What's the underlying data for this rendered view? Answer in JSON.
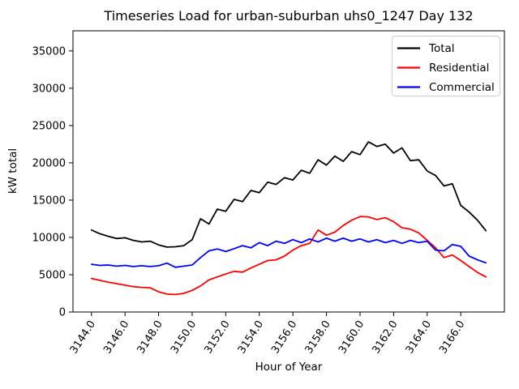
{
  "window": {
    "background": "#ffffff"
  },
  "chart_data": {
    "type": "line",
    "title": "Timeseries Load for urban-suburban uhs0_1247  Day 132",
    "xlabel": "Hour of Year",
    "ylabel": "kW total",
    "grid": false,
    "legend_position": "upper right",
    "xlim": [
      3142.9,
      3168.6
    ],
    "ylim": [
      0,
      37700
    ],
    "x_start": 3144.0,
    "x_step": 0.5,
    "xticks": {
      "values": [
        3144,
        3146,
        3148,
        3150,
        3152,
        3154,
        3156,
        3158,
        3160,
        3162,
        3164,
        3166
      ],
      "labels": [
        "3144.0",
        "3146.0",
        "3148.0",
        "3150.0",
        "3152.0",
        "3154.0",
        "3156.0",
        "3158.0",
        "3160.0",
        "3162.0",
        "3164.0",
        "3166.0"
      ]
    },
    "yticks": {
      "values": [
        0,
        5000,
        10000,
        15000,
        20000,
        25000,
        30000,
        35000
      ],
      "labels": [
        "0",
        "5000",
        "10000",
        "15000",
        "20000",
        "25000",
        "30000",
        "35000"
      ]
    },
    "series": [
      {
        "name": "Total",
        "color": "#000000",
        "values": [
          11000,
          10500,
          10150,
          9850,
          9950,
          9600,
          9400,
          9500,
          9000,
          8700,
          8750,
          8900,
          9700,
          12500,
          11800,
          13800,
          13500,
          15100,
          14800,
          16300,
          16000,
          17400,
          17100,
          18000,
          17700,
          19000,
          18600,
          20400,
          19700,
          20900,
          20200,
          21500,
          21100,
          22800,
          22200,
          22500,
          21300,
          22000,
          20300,
          20400,
          18900,
          18300,
          16900,
          17200,
          14300,
          13400,
          12300,
          10900
        ]
      },
      {
        "name": "Residential",
        "color": "#ff0000",
        "values": [
          4500,
          4250,
          4000,
          3800,
          3600,
          3400,
          3300,
          3250,
          2700,
          2400,
          2350,
          2500,
          2900,
          3500,
          4300,
          4700,
          5100,
          5450,
          5350,
          5900,
          6400,
          6900,
          7000,
          7500,
          8300,
          8900,
          9200,
          11000,
          10300,
          10700,
          11600,
          12300,
          12800,
          12750,
          12400,
          12650,
          12100,
          11300,
          11100,
          10600,
          9600,
          8600,
          7300,
          7650,
          6900,
          6100,
          5300,
          4700
        ]
      },
      {
        "name": "Commercial",
        "color": "#0000ff",
        "values": [
          6400,
          6250,
          6300,
          6150,
          6250,
          6100,
          6200,
          6100,
          6200,
          6550,
          6000,
          6150,
          6300,
          7300,
          8200,
          8450,
          8100,
          8500,
          8900,
          8600,
          9300,
          8900,
          9500,
          9200,
          9700,
          9300,
          9800,
          9400,
          9900,
          9500,
          9900,
          9500,
          9800,
          9400,
          9700,
          9300,
          9600,
          9200,
          9600,
          9300,
          9500,
          8300,
          8200,
          9050,
          8800,
          7500,
          7000,
          6600
        ]
      }
    ]
  }
}
